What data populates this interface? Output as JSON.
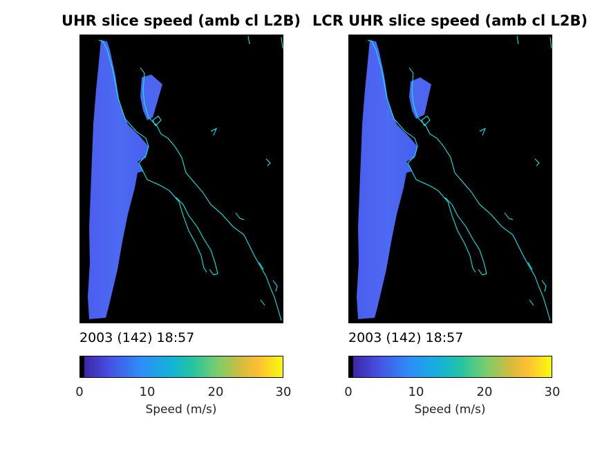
{
  "panels": [
    {
      "title": "UHR slice speed (amb cl L2B)",
      "date": "2003 (142) 18:57",
      "colorbar_label": "Speed (m/s)",
      "ticks": [
        "0",
        "10",
        "20",
        "30"
      ]
    },
    {
      "title": "LCR UHR slice speed (amb cl L2B)",
      "date": "2003 (142) 18:57",
      "colorbar_label": "Speed (m/s)",
      "ticks": [
        "0",
        "10",
        "20",
        "30"
      ]
    }
  ],
  "colors": {
    "background": "#000000",
    "coastline": "#00ffff",
    "wind_swath": "#4a62f0",
    "colormap": [
      "#000000",
      "#3e26a8",
      "#4653e4",
      "#2d8ef9",
      "#13b2d7",
      "#22c4a2",
      "#7ccd6b",
      "#d5bb3a",
      "#fdbf34",
      "#f9fb0e"
    ]
  },
  "chart_data": [
    {
      "type": "heatmap",
      "title": "UHR slice speed (amb cl L2B)",
      "colorbar": {
        "label": "Speed (m/s)",
        "range": [
          0,
          30
        ],
        "ticks": [
          0,
          10,
          20,
          30
        ]
      },
      "annotation": "2003 (142) 18:57",
      "dominant_speed_m_s": 6
    },
    {
      "type": "heatmap",
      "title": "LCR UHR slice speed (amb cl L2B)",
      "colorbar": {
        "label": "Speed (m/s)",
        "range": [
          0,
          30
        ],
        "ticks": [
          0,
          10,
          20,
          30
        ]
      },
      "annotation": "2003 (142) 18:57",
      "dominant_speed_m_s": 6
    }
  ]
}
